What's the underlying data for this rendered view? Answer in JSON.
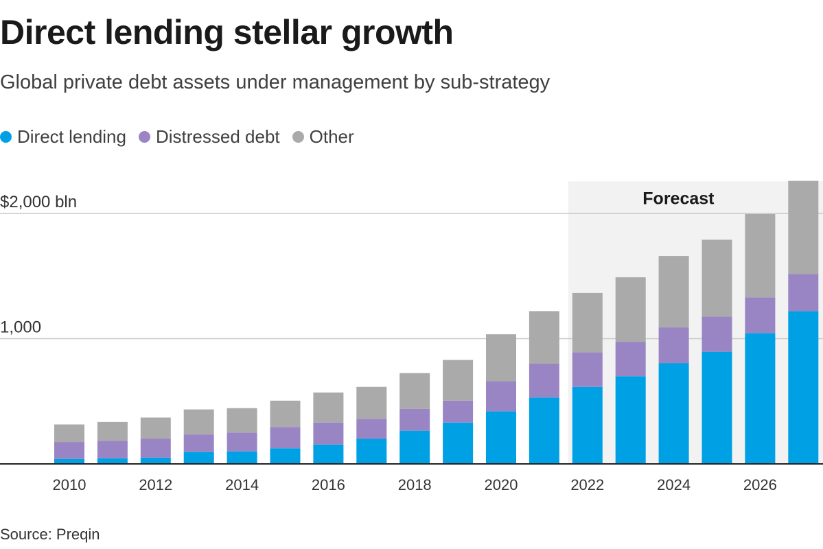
{
  "title": "Direct lending stellar growth",
  "subtitle": "Global private debt assets under management by sub-strategy",
  "source": "Source: Preqin",
  "colors": {
    "direct_lending": "#00a0e4",
    "distressed_debt": "#9a85c4",
    "other": "#aaaaaa",
    "forecast_band": "#f2f2f2",
    "grid": "#c8c8c8",
    "axis": "#222222"
  },
  "legend": [
    {
      "label": "Direct lending",
      "color": "#00a0e4"
    },
    {
      "label": "Distressed debt",
      "color": "#9a85c4"
    },
    {
      "label": "Other",
      "color": "#aaaaaa"
    }
  ],
  "chart_data": {
    "type": "bar",
    "stacked": true,
    "title": "Direct lending stellar growth",
    "subtitle": "Global private debt assets under management by sub-strategy",
    "xlabel": "",
    "ylabel": "",
    "ylim": [
      0,
      2300
    ],
    "y_ticks": [
      {
        "value": 1000,
        "label": "1,000"
      },
      {
        "value": 2000,
        "label": "$2,000 bln"
      }
    ],
    "categories": [
      "2010",
      "2011",
      "2012",
      "2013",
      "2014",
      "2015",
      "2016",
      "2017",
      "2018",
      "2019",
      "2020",
      "2021",
      "2022",
      "2023",
      "2024",
      "2025",
      "2026",
      "2027"
    ],
    "x_tick_labels": [
      "2010",
      "2012",
      "2014",
      "2016",
      "2018",
      "2020",
      "2022",
      "2024",
      "2026"
    ],
    "forecast": {
      "label": "Forecast",
      "start": "2022",
      "end": "2027"
    },
    "series": [
      {
        "name": "Direct lending",
        "color": "#00a0e4",
        "values": [
          40,
          45,
          50,
          95,
          100,
          125,
          155,
          200,
          265,
          330,
          420,
          530,
          615,
          700,
          805,
          895,
          1045,
          1220
        ]
      },
      {
        "name": "Distressed debt",
        "color": "#9a85c4",
        "values": [
          135,
          140,
          150,
          140,
          150,
          170,
          175,
          160,
          175,
          175,
          240,
          270,
          275,
          275,
          285,
          280,
          285,
          295
        ]
      },
      {
        "name": "Other",
        "color": "#aaaaaa",
        "values": [
          140,
          150,
          170,
          200,
          195,
          210,
          240,
          255,
          285,
          325,
          375,
          420,
          475,
          515,
          570,
          615,
          665,
          745
        ]
      }
    ]
  }
}
